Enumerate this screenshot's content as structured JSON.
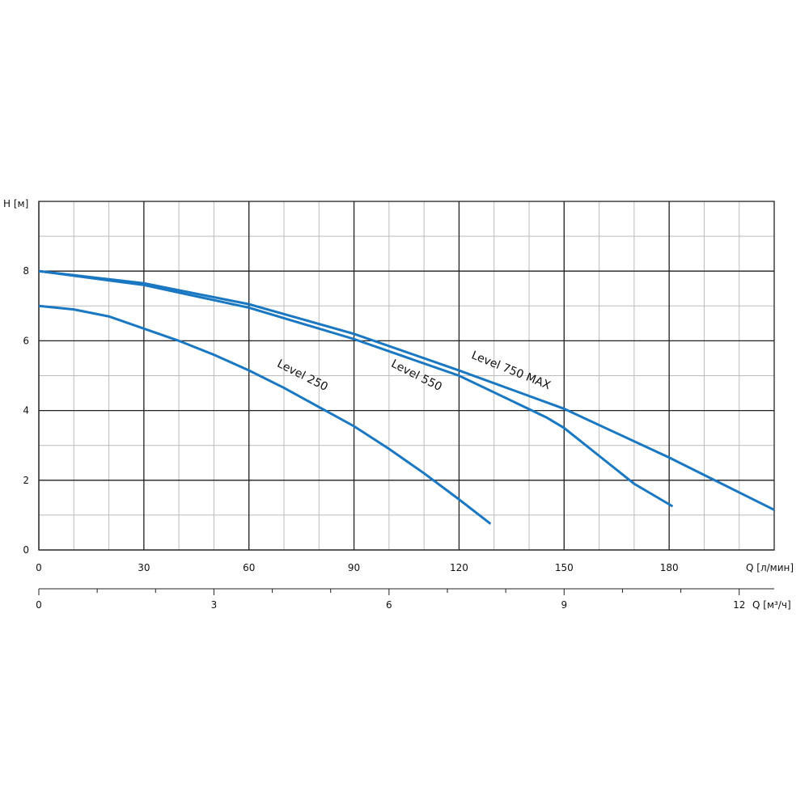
{
  "chart_data": {
    "type": "line",
    "ylabel": "H [м]",
    "xlabel": "Q [л/мин]",
    "x2label": "Q [м³/ч]",
    "xlim": [
      0,
      210
    ],
    "xticks": [
      0,
      30,
      60,
      90,
      120,
      150,
      180
    ],
    "ylim": [
      0,
      10
    ],
    "yticks": [
      0,
      2,
      4,
      6,
      8
    ],
    "x2lim": [
      0,
      12.6
    ],
    "x2ticks": [
      0,
      3,
      6,
      9,
      12
    ],
    "x2minorticks": [
      1,
      2,
      4,
      5,
      7,
      8,
      10,
      11
    ],
    "grid": true,
    "xminor_step": 10,
    "yminor_step": 1,
    "series": [
      {
        "name": "Level 250",
        "color": "#1a78c2",
        "x": [
          0,
          10,
          20,
          30,
          40,
          50,
          60,
          70,
          80,
          90,
          100,
          110,
          120,
          129
        ],
        "values": [
          7,
          6.9,
          6.7,
          6.35,
          6.0,
          5.6,
          5.15,
          4.65,
          4.1,
          3.55,
          2.9,
          2.2,
          1.45,
          0.75
        ]
      },
      {
        "name": "Level 550",
        "color": "#1a78c2",
        "x": [
          0,
          30,
          60,
          90,
          120,
          145,
          150,
          160,
          170,
          181
        ],
        "values": [
          8,
          7.6,
          6.95,
          6.05,
          5.0,
          3.8,
          3.5,
          2.7,
          1.9,
          1.25
        ]
      },
      {
        "name": "Level 750 MAX",
        "color": "#1a78c2",
        "x": [
          0,
          30,
          60,
          90,
          120,
          150,
          180,
          210
        ],
        "values": [
          8,
          7.65,
          7.05,
          6.2,
          5.15,
          4.05,
          2.65,
          1.15
        ]
      }
    ]
  }
}
